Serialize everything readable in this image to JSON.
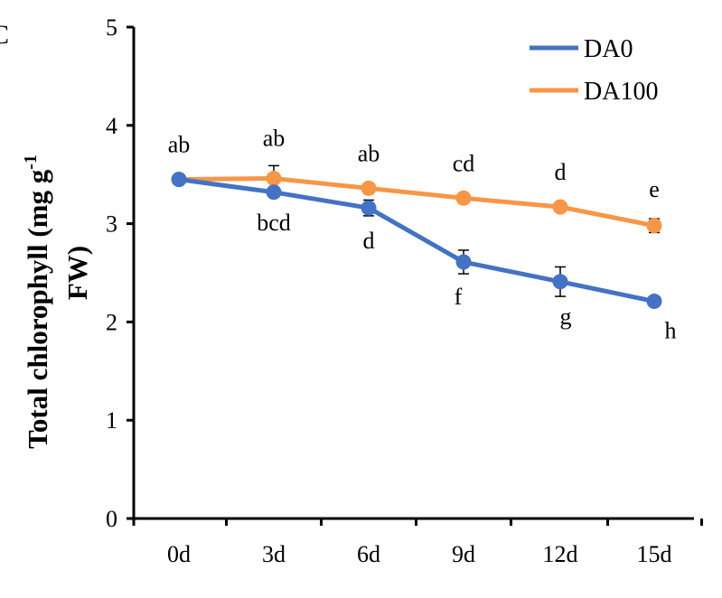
{
  "panel_label": "C",
  "chart_data": {
    "type": "line",
    "categories": [
      "0d",
      "3d",
      "6d",
      "9d",
      "12d",
      "15d"
    ],
    "ylabel_main": "Total  chlorophyll (mg g",
    "ylabel_sup": "-1",
    "ylabel_line2": "FW)",
    "ylim": [
      0,
      5
    ],
    "yticks": [
      0,
      1,
      2,
      3,
      4,
      5
    ],
    "grid": false,
    "legend_position": "top-right",
    "series": [
      {
        "name": "DA0",
        "color": "#4472C4",
        "values": [
          3.45,
          3.32,
          3.16,
          2.61,
          2.41,
          2.21
        ],
        "errors": [
          0.02,
          0.05,
          0.08,
          0.12,
          0.15,
          0.04
        ],
        "sig_labels": [
          "",
          "bcd",
          "d",
          "f",
          "g",
          "h"
        ]
      },
      {
        "name": "DA100",
        "color": "#F79646",
        "values": [
          3.45,
          3.46,
          3.36,
          3.26,
          3.17,
          2.98
        ],
        "errors": [
          0.02,
          0.13,
          0.04,
          0.03,
          0.03,
          0.07
        ],
        "sig_labels": [
          "ab",
          "ab",
          "ab",
          "cd",
          "d",
          "e"
        ]
      }
    ]
  }
}
